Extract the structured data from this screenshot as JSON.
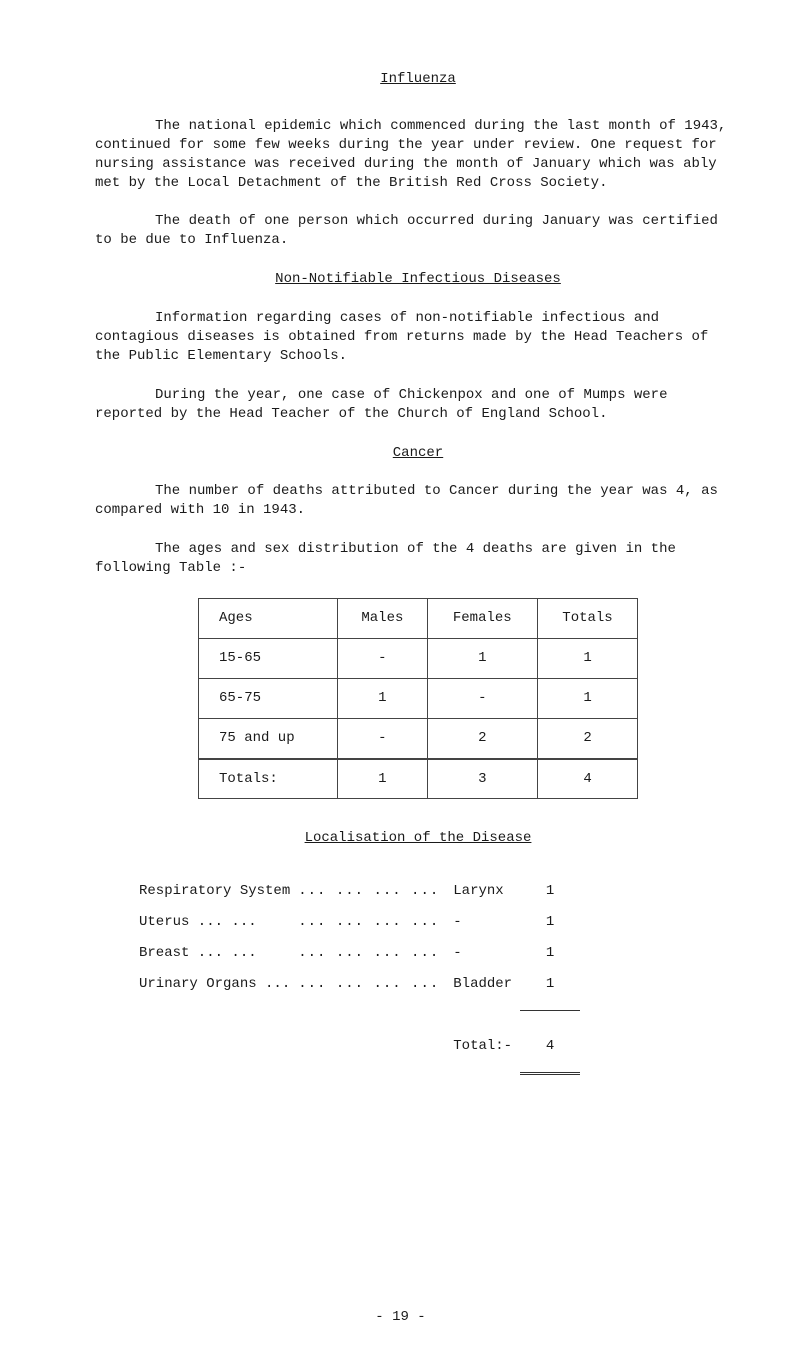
{
  "title": "Influenza",
  "para1": "The national epidemic which commenced during the last month of 1943, continued for some few weeks during the year under review. One request for nursing assistance was received during the month of January which was ably met by the Local Detachment of the British Red Cross Society.",
  "para2": "The death of one person which occurred during January was certified to be due to Influenza.",
  "subTitle1": "Non-Notifiable Infectious Diseases",
  "para3": "Information regarding cases of non-notifiable infectious and contagious diseases is obtained from returns made by the Head Teachers of the Public Elementary Schools.",
  "para4": "During the year, one case of Chickenpox and one of Mumps were reported by the Head Teacher of the Church of England School.",
  "cancerTitle": "Cancer",
  "para5": "The number of deaths attributed to Cancer during the year was 4, as compared with 10 in 1943.",
  "para6": "The ages and sex distribution of the 4 deaths are given in the following Table :-",
  "table": {
    "headers": [
      "Ages",
      "Males",
      "Females",
      "Totals"
    ],
    "rows": [
      {
        "age": "15-65",
        "m": "-",
        "f": "1",
        "t": "1"
      },
      {
        "age": "65-75",
        "m": "1",
        "f": "-",
        "t": "1"
      },
      {
        "age": "75 and up",
        "m": "-",
        "f": "2",
        "t": "2"
      }
    ],
    "totals": {
      "label": "Totals:",
      "m": "1",
      "f": "3",
      "t": "4"
    }
  },
  "locTitle": "Localisation of the Disease",
  "locRows": [
    {
      "label": "Respiratory System",
      "dots": "...   ...   ...   ...",
      "name": "Larynx",
      "val": "1"
    },
    {
      "label": "Uterus   ...   ...",
      "dots": "...   ...   ...   ...",
      "name": "-",
      "val": "1"
    },
    {
      "label": "Breast   ...   ...",
      "dots": "...   ...   ...   ...",
      "name": "-",
      "val": "1"
    },
    {
      "label": "Urinary Organs ...",
      "dots": "...   ...   ...   ...",
      "name": "Bladder",
      "val": "1"
    }
  ],
  "locTotal": {
    "label": "Total:-",
    "val": "4"
  },
  "pageNum": "- 19 -"
}
